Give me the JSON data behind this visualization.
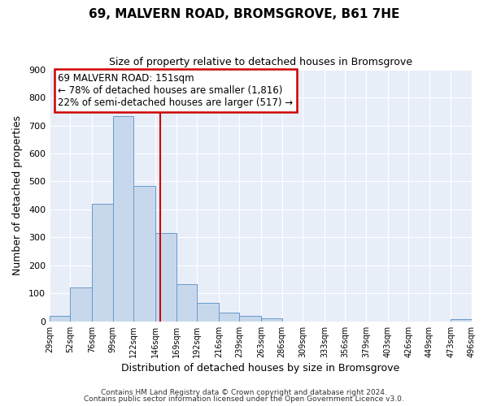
{
  "title": "69, MALVERN ROAD, BROMSGROVE, B61 7HE",
  "subtitle": "Size of property relative to detached houses in Bromsgrove",
  "xlabel": "Distribution of detached houses by size in Bromsgrove",
  "ylabel": "Number of detached properties",
  "bar_color": "#c8d8ec",
  "bar_edge_color": "#6699cc",
  "plot_bg_color": "#e8eef8",
  "fig_bg_color": "#ffffff",
  "grid_color": "#ffffff",
  "bins": [
    29,
    52,
    76,
    99,
    122,
    146,
    169,
    192,
    216,
    239,
    263,
    286,
    309,
    333,
    356,
    379,
    403,
    426,
    449,
    473,
    496
  ],
  "bin_labels": [
    "29sqm",
    "52sqm",
    "76sqm",
    "99sqm",
    "122sqm",
    "146sqm",
    "169sqm",
    "192sqm",
    "216sqm",
    "239sqm",
    "263sqm",
    "286sqm",
    "309sqm",
    "333sqm",
    "356sqm",
    "379sqm",
    "403sqm",
    "426sqm",
    "449sqm",
    "473sqm",
    "496sqm"
  ],
  "values": [
    20,
    122,
    420,
    733,
    483,
    317,
    133,
    65,
    30,
    20,
    10,
    0,
    0,
    0,
    0,
    0,
    0,
    0,
    0,
    8,
    0
  ],
  "ylim": [
    0,
    900
  ],
  "yticks": [
    0,
    100,
    200,
    300,
    400,
    500,
    600,
    700,
    800,
    900
  ],
  "property_size": 151,
  "vline_color": "#cc0000",
  "annotation_line1": "69 MALVERN ROAD: 151sqm",
  "annotation_line2": "← 78% of detached houses are smaller (1,816)",
  "annotation_line3": "22% of semi-detached houses are larger (517) →",
  "annotation_box_color": "#cc0000",
  "footer_line1": "Contains HM Land Registry data © Crown copyright and database right 2024.",
  "footer_line2": "Contains public sector information licensed under the Open Government Licence v3.0."
}
